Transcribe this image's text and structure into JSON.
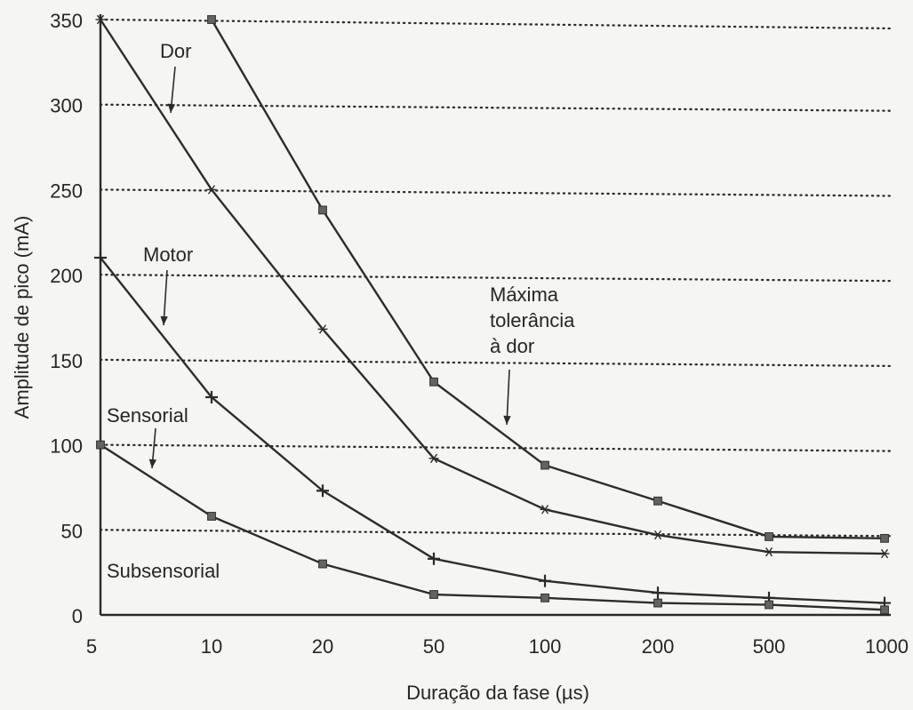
{
  "chart_data": {
    "type": "line",
    "x": [
      5,
      10,
      20,
      50,
      100,
      200,
      500,
      1000
    ],
    "xlabel": "Duração da fase (µs)",
    "ylabel": "Amplitude de pico (mA)",
    "ylim": [
      0,
      350
    ],
    "ticks_y": [
      "0",
      "50",
      "100",
      "150",
      "200",
      "250",
      "300",
      "350"
    ],
    "tick_labels_x": [
      "5",
      "10",
      "20",
      "50",
      "100",
      "200",
      "500",
      "1000"
    ],
    "grid": true,
    "series": [
      {
        "name": "Máxima tolerância à dor",
        "marker": "square",
        "values": [
          null,
          350,
          238,
          137,
          88,
          67,
          46,
          45
        ]
      },
      {
        "name": "Dor",
        "marker": "asterisk",
        "values": [
          350,
          250,
          168,
          92,
          62,
          47,
          37,
          36
        ]
      },
      {
        "name": "Motor",
        "marker": "plus",
        "values": [
          210,
          128,
          73,
          33,
          20,
          13,
          10,
          7
        ]
      },
      {
        "name": "Sensorial",
        "marker": "square",
        "values": [
          100,
          58,
          30,
          12,
          10,
          7,
          6,
          3
        ]
      }
    ],
    "annotations": [
      {
        "id": "dor",
        "lines": [
          "Dor"
        ]
      },
      {
        "id": "motor",
        "lines": [
          "Motor"
        ]
      },
      {
        "id": "sensorial",
        "lines": [
          "Sensorial"
        ]
      },
      {
        "id": "maxima",
        "lines": [
          "Máxima",
          "tolerância",
          "à dor"
        ]
      },
      {
        "id": "subsensorial",
        "lines": [
          "Subsensorial"
        ]
      }
    ]
  }
}
